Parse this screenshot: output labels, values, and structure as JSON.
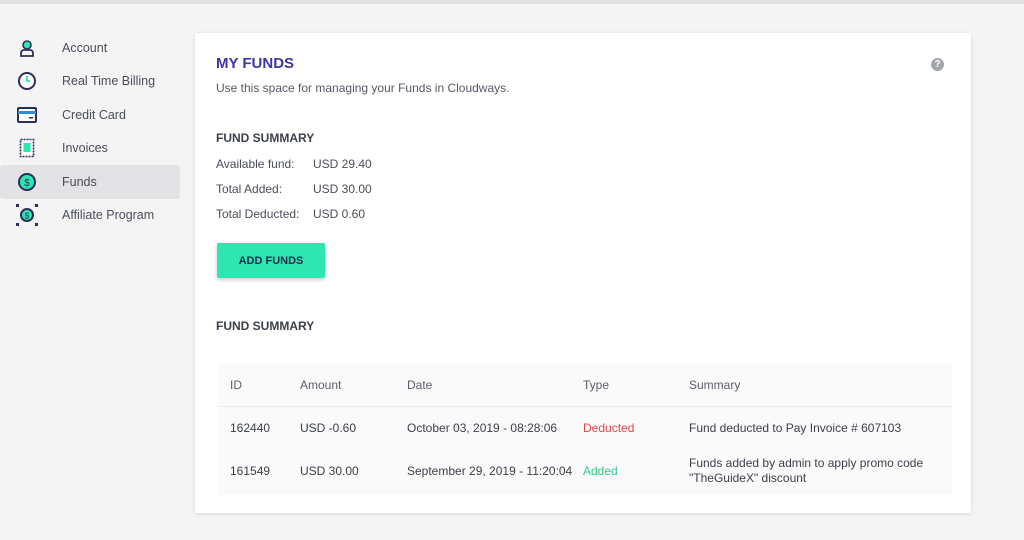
{
  "sidebar": {
    "items": [
      {
        "label": "Account",
        "icon": "user-icon"
      },
      {
        "label": "Real Time Billing",
        "icon": "clock-icon"
      },
      {
        "label": "Credit Card",
        "icon": "credit-card-icon"
      },
      {
        "label": "Invoices",
        "icon": "invoice-icon"
      },
      {
        "label": "Funds",
        "icon": "dollar-coin-icon",
        "active": true
      },
      {
        "label": "Affiliate Program",
        "icon": "affiliate-icon"
      }
    ]
  },
  "main": {
    "title": "MY FUNDS",
    "subtitle": "Use this space for managing your Funds in Cloudways.",
    "help": "?",
    "summary_title": "FUND SUMMARY",
    "summary": [
      {
        "label": "Available fund:",
        "value": "USD 29.40"
      },
      {
        "label": "Total Added:",
        "value": "USD 30.00"
      },
      {
        "label": "Total Deducted:",
        "value": "USD 0.60"
      }
    ],
    "add_button": "ADD FUNDS",
    "table_title": "FUND SUMMARY",
    "table": {
      "headers": [
        "ID",
        "Amount",
        "Date",
        "Type",
        "Summary"
      ],
      "rows": [
        {
          "id": "162440",
          "amount": "USD -0.60",
          "date": "October 03, 2019 - 08:28:06",
          "type": "Deducted",
          "summary": "Fund deducted to Pay Invoice # 607103"
        },
        {
          "id": "161549",
          "amount": "USD 30.00",
          "date": "September 29, 2019 - 11:20:04",
          "type": "Added",
          "summary": "Funds added by admin to apply promo code",
          "summary2": "\"TheGuideX\" discount"
        }
      ]
    }
  },
  "colors": {
    "accent": "#3a36a0",
    "button": "#2ee6b0",
    "deducted": "#e0474c",
    "added": "#2ecc8a",
    "icon_teal": "#2ee6b0",
    "icon_navy": "#2a2f5a"
  }
}
